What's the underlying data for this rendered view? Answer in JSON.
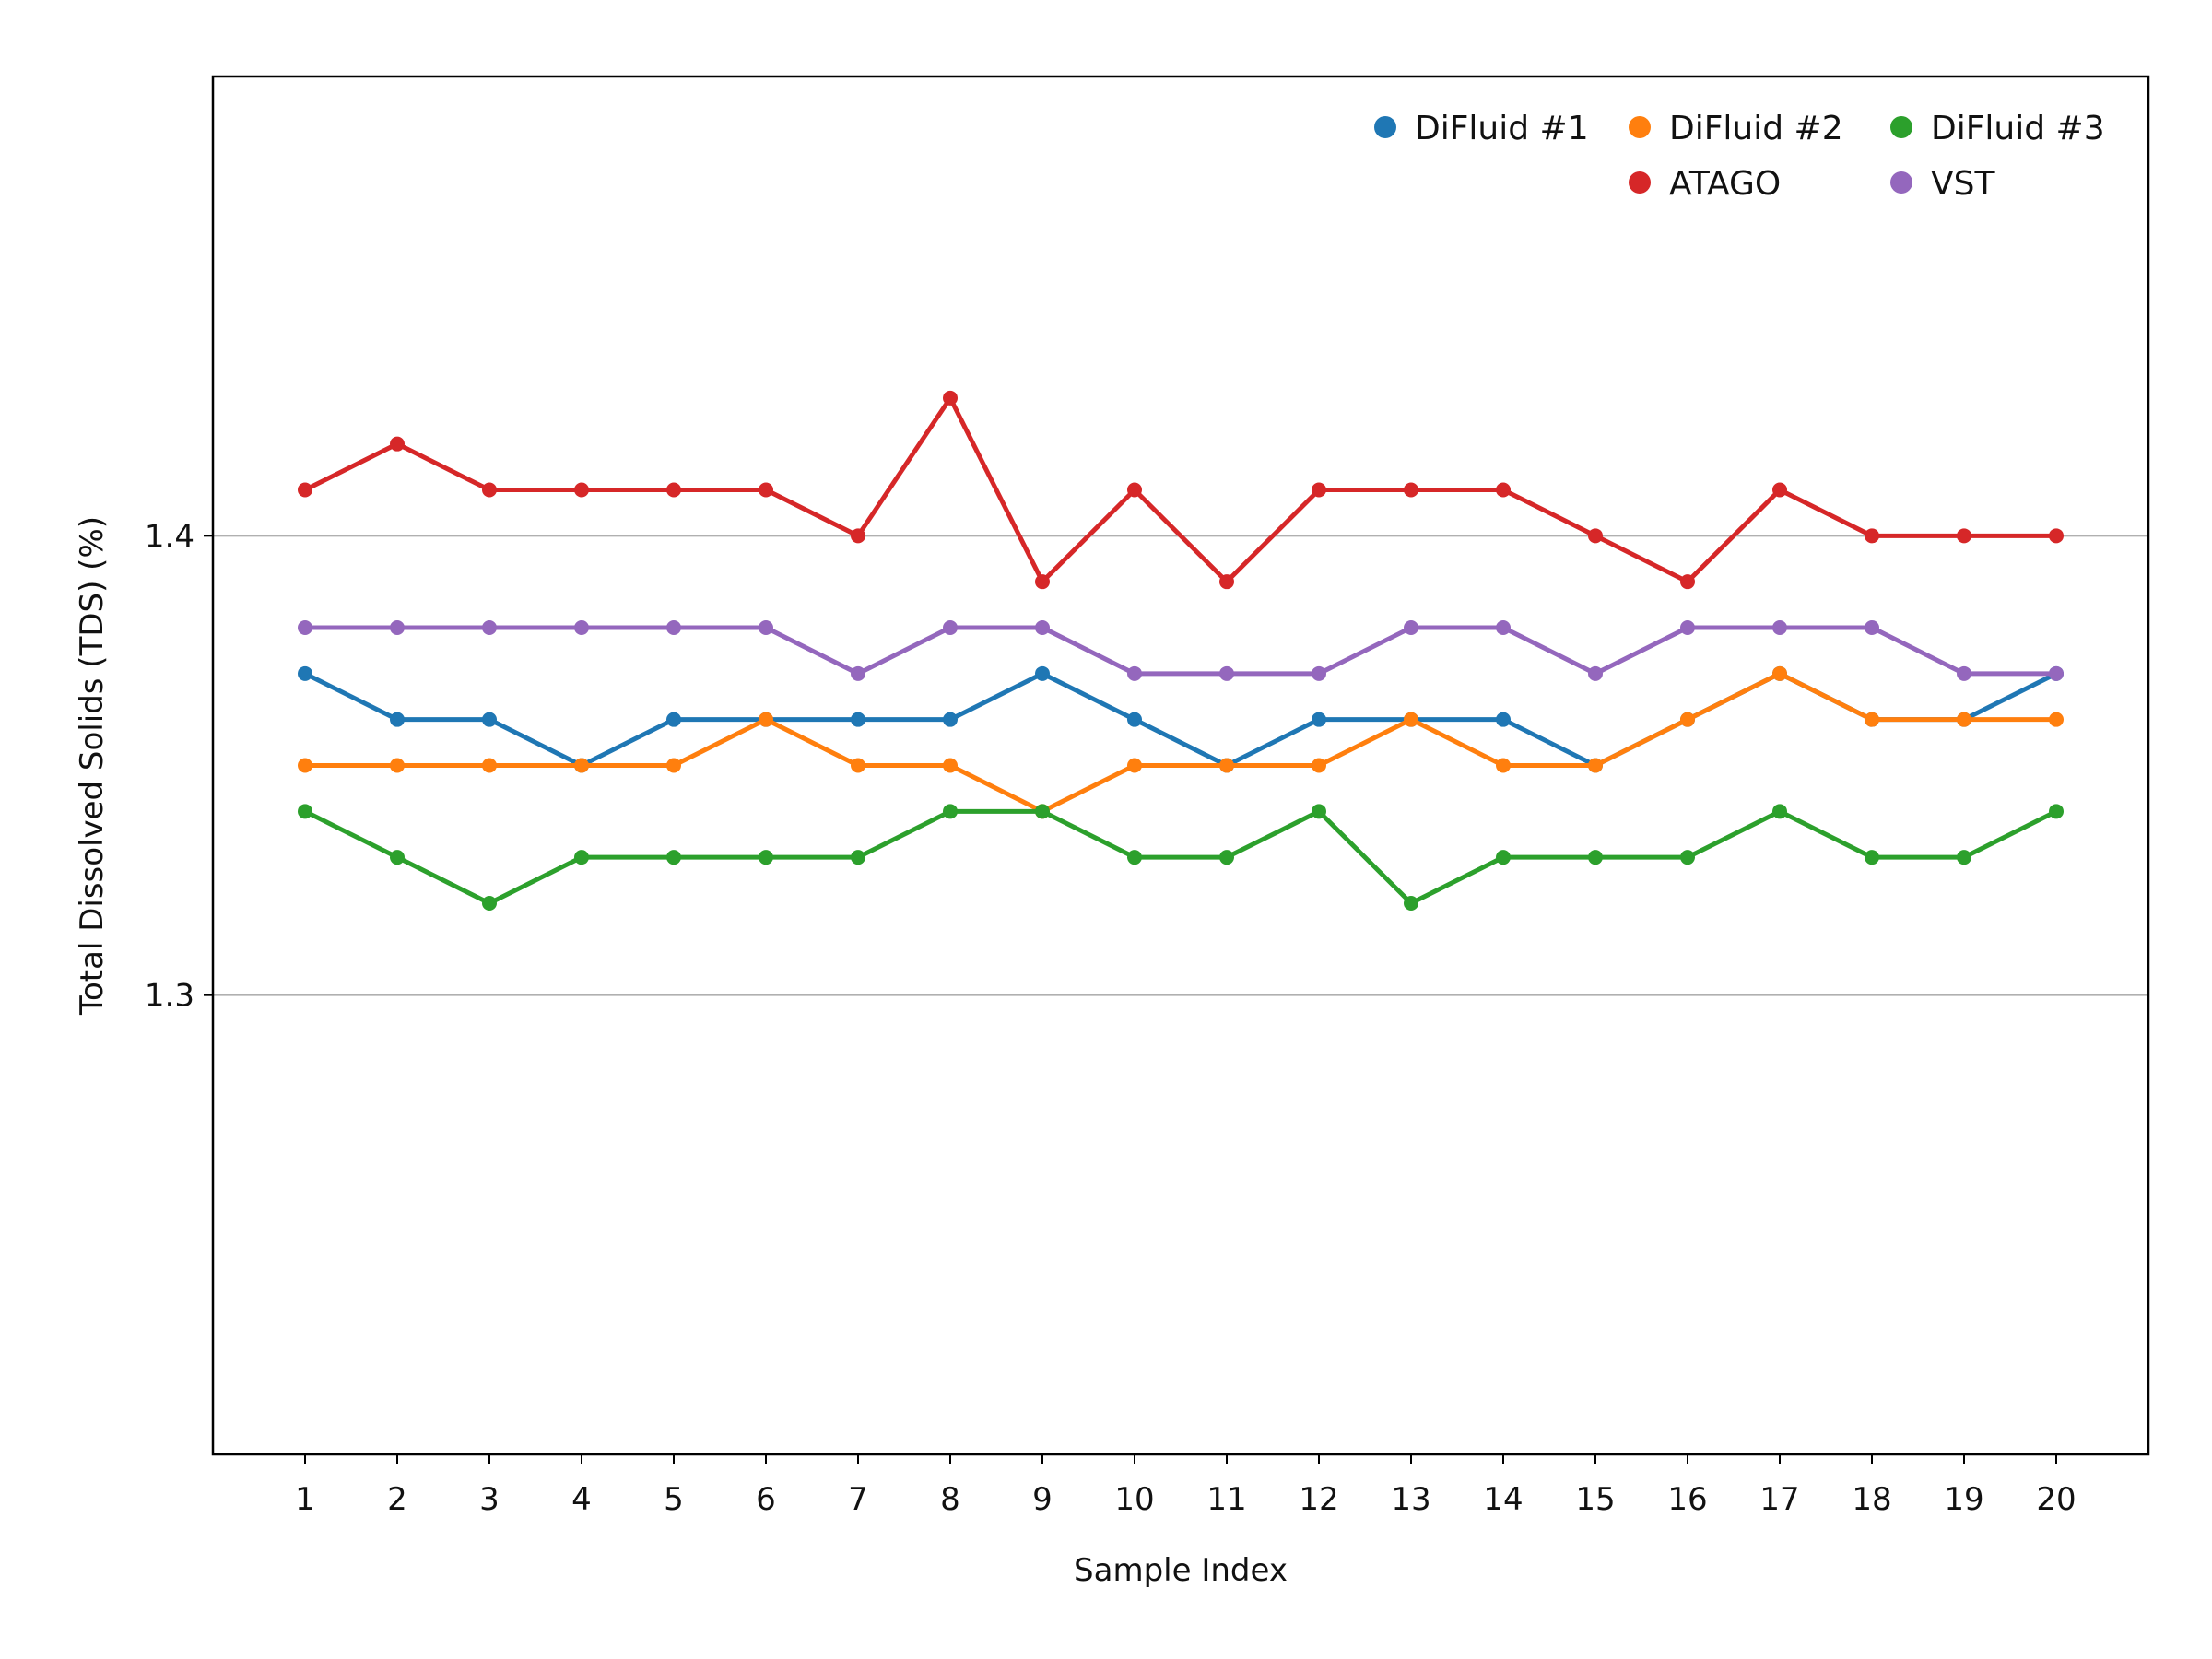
{
  "chart_data": {
    "type": "line",
    "xlabel": "Sample Index",
    "ylabel": "Total Dissolved Solids (TDS) (%)",
    "x": [
      1,
      2,
      3,
      4,
      5,
      6,
      7,
      8,
      9,
      10,
      11,
      12,
      13,
      14,
      15,
      16,
      17,
      18,
      19,
      20
    ],
    "xlim": [
      0,
      21
    ],
    "ylim": [
      1.2,
      1.5
    ],
    "yticks": [
      1.3,
      1.4
    ],
    "grid": "horizontal",
    "legend_position": "top-right",
    "series": [
      {
        "name": "DiFluid #1",
        "color": "#1f77b4",
        "values": [
          1.37,
          1.36,
          1.36,
          1.35,
          1.36,
          1.36,
          1.36,
          1.36,
          1.37,
          1.36,
          1.35,
          1.36,
          1.36,
          1.36,
          1.35,
          1.36,
          1.37,
          1.36,
          1.36,
          1.37
        ]
      },
      {
        "name": "DiFluid #2",
        "color": "#ff7f0e",
        "values": [
          1.35,
          1.35,
          1.35,
          1.35,
          1.35,
          1.36,
          1.35,
          1.35,
          1.34,
          1.35,
          1.35,
          1.35,
          1.36,
          1.35,
          1.35,
          1.36,
          1.37,
          1.36,
          1.36,
          1.36
        ]
      },
      {
        "name": "DiFluid #3",
        "color": "#2ca02c",
        "values": [
          1.34,
          1.33,
          1.32,
          1.33,
          1.33,
          1.33,
          1.33,
          1.34,
          1.34,
          1.33,
          1.33,
          1.34,
          1.32,
          1.33,
          1.33,
          1.33,
          1.34,
          1.33,
          1.33,
          1.34
        ]
      },
      {
        "name": "ATAGO",
        "color": "#d62728",
        "values": [
          1.41,
          1.42,
          1.41,
          1.41,
          1.41,
          1.41,
          1.4,
          1.43,
          1.39,
          1.41,
          1.39,
          1.41,
          1.41,
          1.41,
          1.4,
          1.39,
          1.41,
          1.4,
          1.4,
          1.4
        ]
      },
      {
        "name": "VST",
        "color": "#9467bd",
        "values": [
          1.38,
          1.38,
          1.38,
          1.38,
          1.38,
          1.38,
          1.37,
          1.38,
          1.38,
          1.37,
          1.37,
          1.37,
          1.38,
          1.38,
          1.37,
          1.38,
          1.38,
          1.38,
          1.37,
          1.37
        ]
      }
    ]
  }
}
